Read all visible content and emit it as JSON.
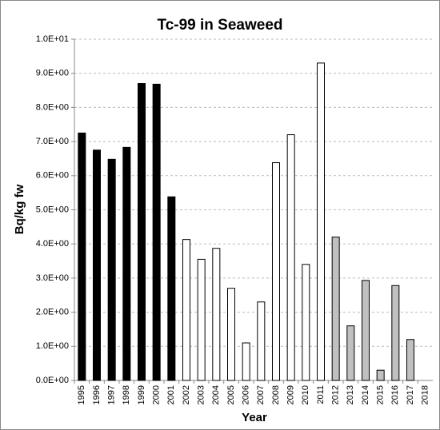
{
  "chart_data": {
    "type": "bar",
    "title": "Tc-99 in Seaweed",
    "x_label": "Year",
    "y_label": "Bq/kg fw",
    "categories": [
      "1995",
      "1996",
      "1997",
      "1998",
      "1999",
      "2000",
      "2001",
      "2002",
      "2003",
      "2004",
      "2005",
      "2006",
      "2007",
      "2008",
      "2009",
      "2010",
      "2011",
      "2012",
      "2013",
      "2014",
      "2015",
      "2016",
      "2017",
      "2018"
    ],
    "values": [
      7.25,
      6.75,
      6.48,
      6.83,
      8.7,
      8.68,
      5.38,
      4.13,
      3.55,
      3.87,
      2.7,
      1.1,
      2.3,
      6.38,
      7.2,
      3.4,
      9.3,
      4.2,
      1.6,
      2.93,
      0.3,
      2.78,
      1.2,
      null
    ],
    "colors": [
      "#000000",
      "#000000",
      "#000000",
      "#000000",
      "#000000",
      "#000000",
      "#000000",
      "#ffffff",
      "#ffffff",
      "#ffffff",
      "#ffffff",
      "#ffffff",
      "#ffffff",
      "#ffffff",
      "#ffffff",
      "#ffffff",
      "#ffffff",
      "#c0c0c0",
      "#c0c0c0",
      "#c0c0c0",
      "#c0c0c0",
      "#c0c0c0",
      "#c0c0c0",
      "#c0c0c0"
    ],
    "ylim": [
      0,
      10
    ],
    "yticks": [
      {
        "value": 0,
        "label": "0.0E+00"
      },
      {
        "value": 1,
        "label": "1.0E+00"
      },
      {
        "value": 2,
        "label": "2.0E+00"
      },
      {
        "value": 3,
        "label": "3.0E+00"
      },
      {
        "value": 4,
        "label": "4.0E+00"
      },
      {
        "value": 5,
        "label": "5.0E+00"
      },
      {
        "value": 6,
        "label": "6.0E+00"
      },
      {
        "value": 7,
        "label": "7.0E+00"
      },
      {
        "value": 8,
        "label": "8.0E+00"
      },
      {
        "value": 9,
        "label": "9.0E+00"
      },
      {
        "value": 10,
        "label": "1.0E+01"
      }
    ],
    "grid": true
  }
}
